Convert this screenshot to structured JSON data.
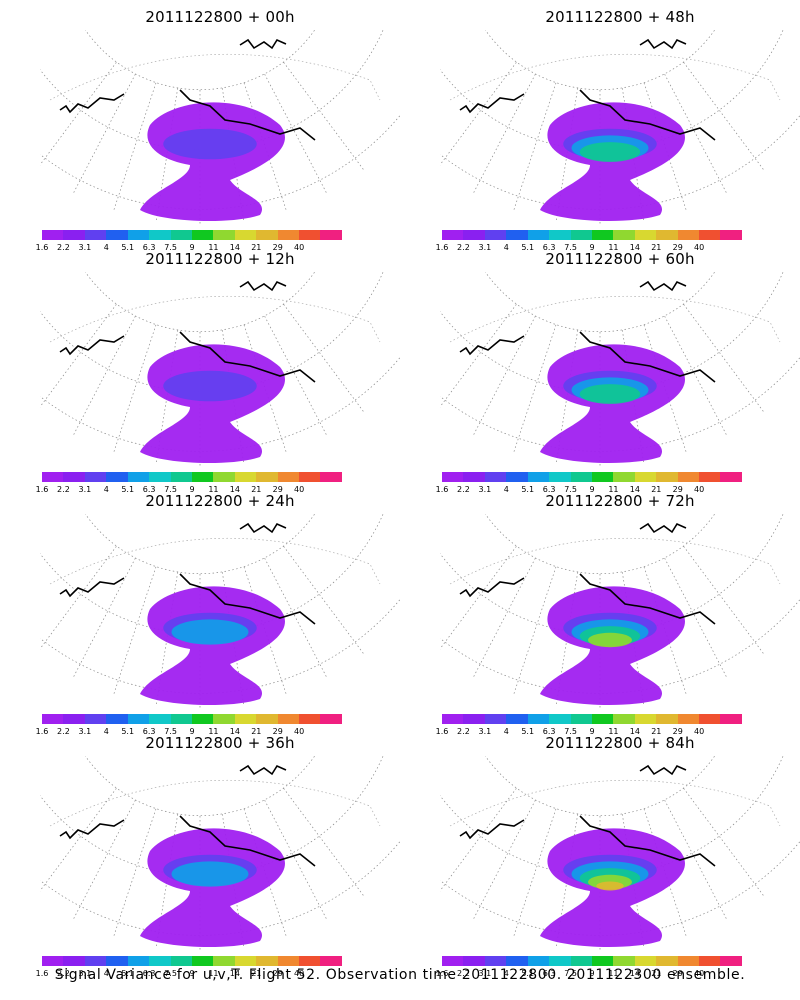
{
  "panels": [
    {
      "title": "2011122800 + 00h",
      "level": 1
    },
    {
      "title": "2011122800 + 48h",
      "level": 3
    },
    {
      "title": "2011122800 + 12h",
      "level": 1
    },
    {
      "title": "2011122800 + 60h",
      "level": 3
    },
    {
      "title": "2011122800 + 24h",
      "level": 2
    },
    {
      "title": "2011122800 + 72h",
      "level": 4
    },
    {
      "title": "2011122800 + 36h",
      "level": 2
    },
    {
      "title": "2011122800 + 84h",
      "level": 5
    }
  ],
  "colorbar": {
    "colors": [
      "#a020f0",
      "#8a20f0",
      "#6040f0",
      "#2060f0",
      "#10a0e8",
      "#10c8c8",
      "#10c890",
      "#10c820",
      "#90d830",
      "#d8d830",
      "#e0b830",
      "#f08830",
      "#f05030",
      "#f02080"
    ],
    "ticks": [
      "1.6",
      "2.2",
      "3.1",
      "4",
      "5.1",
      "6.3",
      "7.5",
      "9",
      "11",
      "14",
      "21",
      "29",
      "40"
    ]
  },
  "caption": "Signal Variance for u,v,T. Flight 52. Observation time 2011122800. 2011122300 ensemble."
}
